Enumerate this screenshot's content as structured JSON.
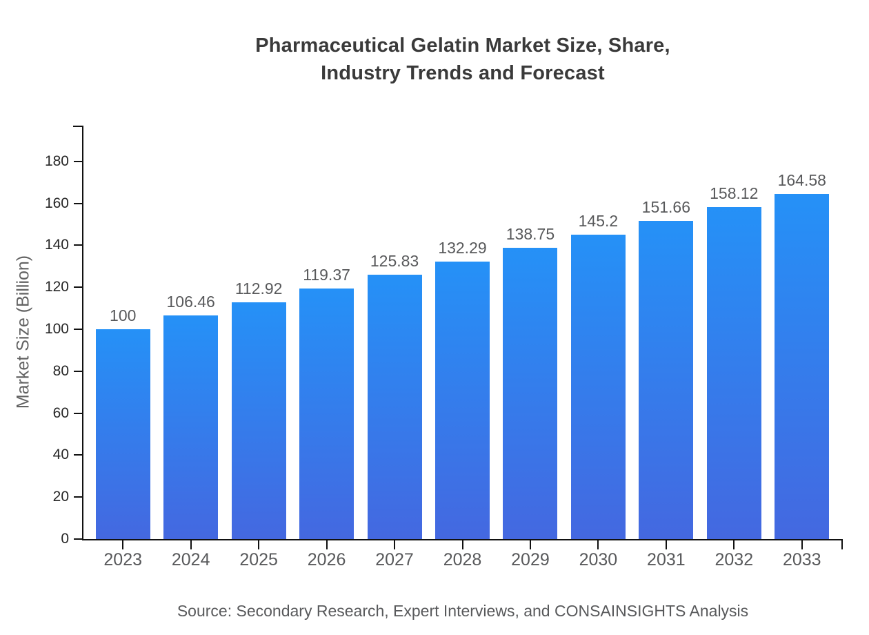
{
  "title": {
    "line1": "Pharmaceutical Gelatin Market Size, Share,",
    "line2": "Industry Trends and Forecast"
  },
  "y_axis_title": "Market Size (Billion)",
  "source": "Source: Secondary Research, Expert Interviews, and CONSAINSIGHTS Analysis",
  "colors": {
    "title": "#3a3a3a",
    "axis": "#111111",
    "y_tick_label": "#262626",
    "muted_text": "#58595b",
    "bar_gradient_top": "#2591f7",
    "bar_gradient_bottom": "#4468e0"
  },
  "chart_data": {
    "type": "bar",
    "title": "Pharmaceutical Gelatin Market Size, Share, Industry Trends and Forecast",
    "xlabel": "",
    "ylabel": "Market Size (Billion)",
    "categories": [
      "2023",
      "2024",
      "2025",
      "2026",
      "2027",
      "2028",
      "2029",
      "2030",
      "2031",
      "2032",
      "2033"
    ],
    "values": [
      100,
      106.46,
      112.92,
      119.37,
      125.83,
      132.29,
      138.75,
      145.2,
      151.66,
      158.12,
      164.58
    ],
    "value_labels": [
      "100",
      "106.46",
      "112.92",
      "119.37",
      "125.83",
      "132.29",
      "138.75",
      "145.2",
      "151.66",
      "158.12",
      "164.58"
    ],
    "yticks": [
      0,
      20,
      40,
      60,
      80,
      100,
      120,
      140,
      160,
      180
    ],
    "ylim": [
      0,
      197
    ],
    "grid": false,
    "legend": null,
    "bar_color_top": "#2591f7",
    "bar_color_bottom": "#4468e0",
    "source": "Source: Secondary Research, Expert Interviews, and CONSAINSIGHTS Analysis"
  }
}
